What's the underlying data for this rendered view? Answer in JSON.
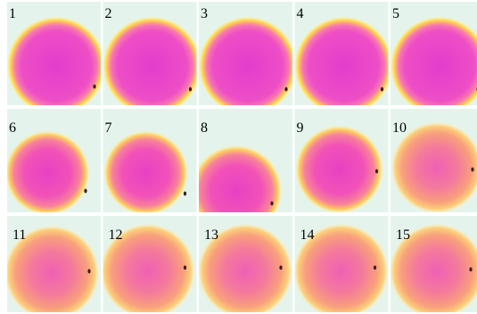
{
  "panels": [
    {
      "label": "1"
    },
    {
      "label": "2"
    },
    {
      "label": "3"
    },
    {
      "label": "4"
    },
    {
      "label": "5"
    },
    {
      "label": "6"
    },
    {
      "label": "7"
    },
    {
      "label": "8"
    },
    {
      "label": "9"
    },
    {
      "label": "10"
    },
    {
      "label": "11"
    },
    {
      "label": "12"
    },
    {
      "label": "13"
    },
    {
      "label": "14"
    },
    {
      "label": "15"
    }
  ]
}
